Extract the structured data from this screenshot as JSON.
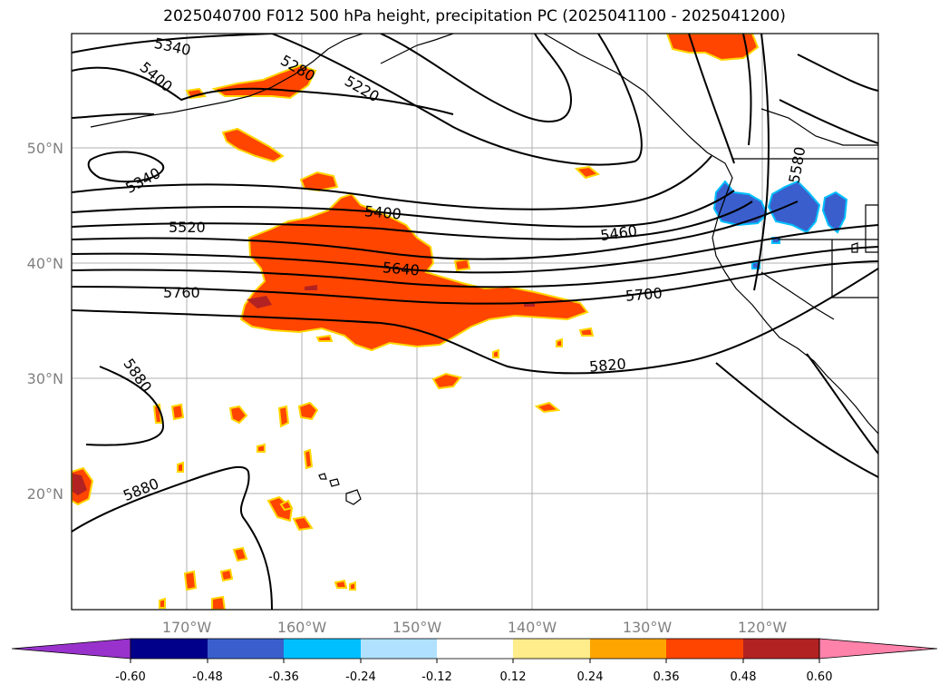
{
  "title": "2025040700 F012 500 hPa height, precipitation PC (2025041100 - 2025041200)",
  "map": {
    "lat_labels": [
      "50°N",
      "40°N",
      "30°N",
      "20°N"
    ],
    "lon_labels": [
      "170°W",
      "160°W",
      "150°W",
      "140°W",
      "130°W",
      "120°W"
    ],
    "contour_labels": [
      "5340",
      "5400",
      "5280",
      "5220",
      "5340",
      "5520",
      "5400",
      "5460",
      "5640",
      "5760",
      "5700",
      "5820",
      "5880",
      "5880",
      "5580"
    ]
  },
  "colorbar": {
    "ticks": [
      "-0.60",
      "-0.48",
      "-0.36",
      "-0.24",
      "-0.12",
      "0.12",
      "0.24",
      "0.36",
      "0.48",
      "0.60"
    ],
    "colors": [
      "#9932cc",
      "#00008b",
      "#3a5fcd",
      "#00bfff",
      "#b0e2ff",
      "#ffffff",
      "#ffec8b",
      "#ffa500",
      "#ff4500",
      "#b22222",
      "#ff82ab"
    ]
  }
}
